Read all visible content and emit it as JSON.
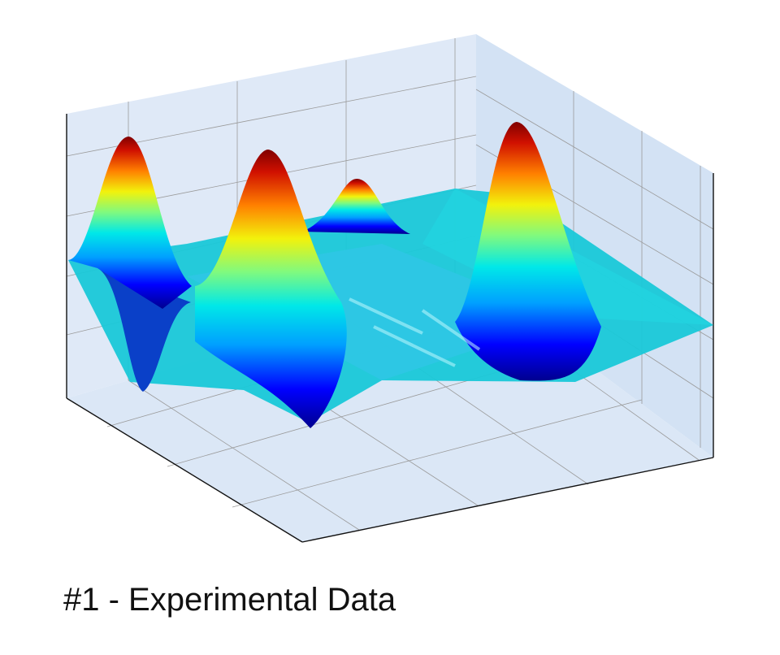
{
  "caption": "#1 - Experimental Data",
  "chart_data": {
    "type": "surface",
    "title": "",
    "xlabel": "",
    "ylabel": "",
    "zlabel": "",
    "tick_labels_shown": false,
    "grid": true,
    "colormap": "jet",
    "colormap_stops": [
      "#00008f",
      "#0000ff",
      "#00a0ff",
      "#00e8e8",
      "#7ffa7f",
      "#f2f20c",
      "#ff8000",
      "#d01000",
      "#800000"
    ],
    "pane_color": "#dfe9f7",
    "z_range": [
      -1,
      1
    ],
    "peaks": [
      {
        "label": "left peak",
        "z": 0.95
      },
      {
        "label": "center peak",
        "z": 0.93
      },
      {
        "label": "right peak",
        "z": 1.0
      },
      {
        "label": "back peak",
        "z": 0.45
      }
    ],
    "troughs": [
      {
        "label": "left trough",
        "z": -0.85
      }
    ]
  }
}
